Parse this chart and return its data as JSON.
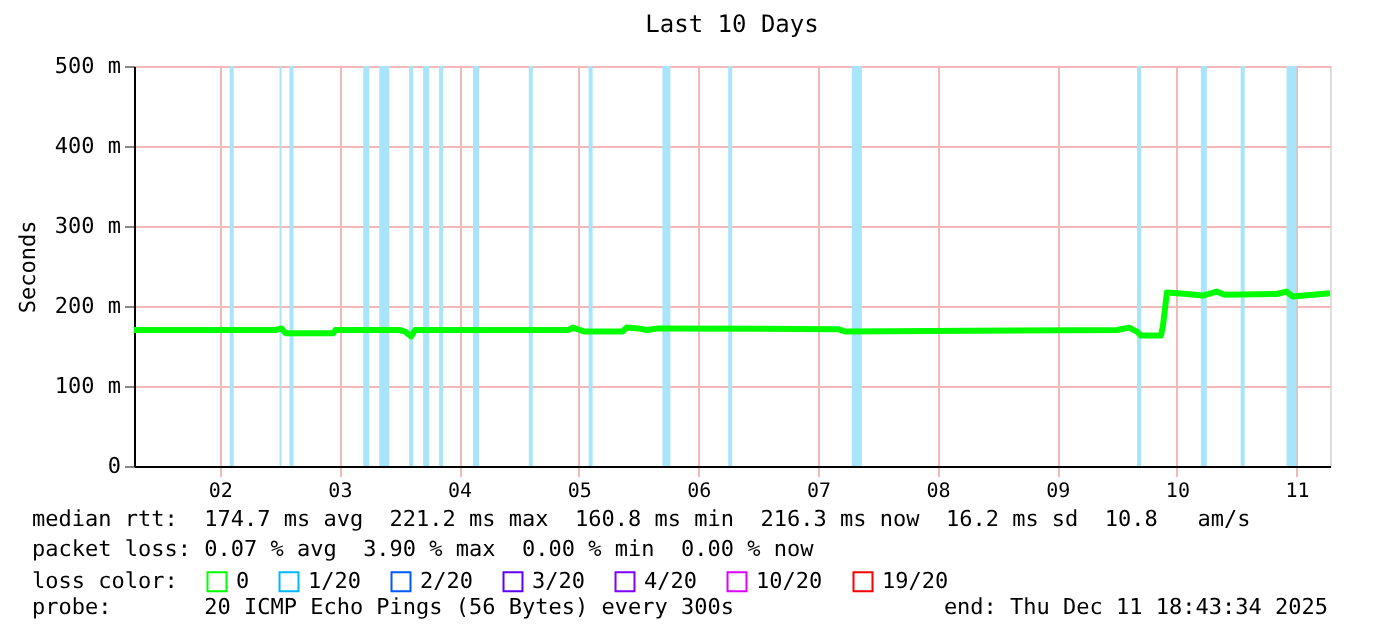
{
  "chart_data": {
    "type": "line",
    "title": "Last 10 Days",
    "ylabel": "Seconds",
    "x": [
      "2025-12-01T18:48",
      "2025-12-02T23:12",
      "2025-12-03T00:24",
      "2025-12-03T01:12",
      "2025-12-03T10:48",
      "2025-12-03T11:12",
      "2025-12-04T00:00",
      "2025-12-04T01:12",
      "2025-12-04T02:24",
      "2025-12-04T03:12",
      "2025-12-05T10:00",
      "2025-12-05T10:48",
      "2025-12-05T13:12",
      "2025-12-05T20:48",
      "2025-12-05T21:36",
      "2025-12-06T00:00",
      "2025-12-06T01:36",
      "2025-12-06T04:00",
      "2025-12-07T16:00",
      "2025-12-07T17:36",
      "2025-12-10T00:00",
      "2025-12-10T02:24",
      "2025-12-10T04:00",
      "2025-12-10T04:48",
      "2025-12-10T08:48",
      "2025-12-10T09:12",
      "2025-12-10T10:00",
      "2025-12-10T14:00",
      "2025-12-10T17:12",
      "2025-12-10T20:00",
      "2025-12-10T21:36",
      "2025-12-11T08:00",
      "2025-12-11T10:00",
      "2025-12-11T11:12",
      "2025-12-11T18:43"
    ],
    "series": [
      {
        "name": "0",
        "color": "#00ff00",
        "values": [
          170,
          170,
          172,
          166,
          166,
          170,
          170,
          168,
          162,
          170,
          170,
          173,
          168,
          168,
          173,
          172,
          170,
          172,
          171,
          168,
          170,
          173,
          168,
          163,
          163,
          175,
          217,
          215,
          213,
          218,
          214,
          215,
          218,
          212,
          216
        ]
      },
      {
        "name": "1/20",
        "color": "#00b8ff",
        "values": [
          null,
          null,
          null,
          null,
          null,
          null,
          null,
          null,
          null,
          null,
          null,
          null,
          null,
          null,
          null,
          null,
          null,
          null,
          null,
          null,
          null,
          null,
          null,
          null,
          null,
          null,
          null,
          null,
          null,
          null,
          null,
          null,
          null,
          null,
          null
        ]
      },
      {
        "name": "2/20",
        "color": "#0059ff",
        "values": [
          null,
          null,
          null,
          null,
          null,
          null,
          null,
          null,
          null,
          null,
          null,
          null,
          null,
          null,
          null,
          null,
          null,
          null,
          null,
          null,
          null,
          null,
          null,
          null,
          null,
          null,
          null,
          null,
          null,
          null,
          null,
          null,
          null,
          null,
          null
        ]
      },
      {
        "name": "3/20",
        "color": "#5e00ff",
        "values": [
          null,
          null,
          null,
          null,
          null,
          null,
          null,
          null,
          null,
          null,
          null,
          null,
          null,
          null,
          null,
          null,
          null,
          null,
          null,
          null,
          null,
          null,
          null,
          null,
          null,
          null,
          null,
          null,
          null,
          null,
          null,
          null,
          null,
          null,
          null
        ]
      },
      {
        "name": "4/20",
        "color": "#7e00ff",
        "values": [
          null,
          null,
          null,
          null,
          null,
          null,
          null,
          null,
          null,
          null,
          null,
          null,
          null,
          null,
          null,
          null,
          null,
          null,
          null,
          null,
          null,
          null,
          null,
          null,
          null,
          null,
          null,
          null,
          null,
          null,
          null,
          null,
          null,
          null,
          null
        ]
      },
      {
        "name": "10/20",
        "color": "#dd00ff",
        "values": [
          null,
          null,
          null,
          null,
          null,
          null,
          null,
          null,
          null,
          null,
          null,
          null,
          null,
          null,
          null,
          null,
          null,
          null,
          null,
          null,
          null,
          null,
          null,
          null,
          null,
          null,
          null,
          null,
          null,
          null,
          null,
          null,
          null,
          null,
          null
        ]
      },
      {
        "name": "19/20",
        "color": "#ff0000",
        "values": [
          null,
          null,
          null,
          null,
          null,
          null,
          null,
          null,
          null,
          null,
          null,
          null,
          null,
          null,
          null,
          null,
          null,
          null,
          null,
          null,
          null,
          null,
          null,
          null,
          null,
          null,
          null,
          null,
          null,
          null,
          null,
          null,
          null,
          null,
          null
        ]
      }
    ],
    "legend_title": "loss color:",
    "legend": "bottom",
    "xlim": [
      "2025-12-01T18:48",
      "2025-12-11T18:43"
    ],
    "xticks": [
      {
        "value": "2025-12-02T12:00",
        "label": "02"
      },
      {
        "value": "2025-12-03T12:00",
        "label": "03"
      },
      {
        "value": "2025-12-04T12:00",
        "label": "04"
      },
      {
        "value": "2025-12-05T12:00",
        "label": "05"
      },
      {
        "value": "2025-12-06T12:00",
        "label": "06"
      },
      {
        "value": "2025-12-07T12:00",
        "label": "07"
      },
      {
        "value": "2025-12-08T12:00",
        "label": "08"
      },
      {
        "value": "2025-12-09T12:00",
        "label": "09"
      },
      {
        "value": "2025-12-10T12:00",
        "label": "10"
      },
      {
        "value": "2025-12-11T12:00",
        "label": "11"
      }
    ],
    "ylim": [
      0,
      500
    ],
    "yticks": [
      0,
      {
        "value": 100,
        "label": "100 m"
      },
      {
        "value": 200,
        "label": "200 m"
      },
      {
        "value": 300,
        "label": "300 m"
      },
      {
        "value": 400,
        "label": "400 m"
      },
      {
        "value": 500,
        "label": "500 m"
      }
    ],
    "grid": true,
    "bands": [
      {
        "axis": "x",
        "from": "2025-12-02T14:00",
        "to": "2025-12-02T14:48",
        "color": "#a8e4fa"
      },
      {
        "axis": "x",
        "from": "2025-12-03T00:00",
        "to": "2025-12-03T00:24",
        "color": "#a8e4fa"
      },
      {
        "axis": "x",
        "from": "2025-12-03T02:00",
        "to": "2025-12-03T02:48",
        "color": "#a8e4fa"
      },
      {
        "axis": "x",
        "from": "2025-12-03T16:48",
        "to": "2025-12-03T18:00",
        "color": "#a8e4fa"
      },
      {
        "axis": "x",
        "from": "2025-12-03T20:00",
        "to": "2025-12-03T22:00",
        "color": "#a8e4fa"
      },
      {
        "axis": "x",
        "from": "2025-12-04T02:00",
        "to": "2025-12-04T02:48",
        "color": "#a8e4fa"
      },
      {
        "axis": "x",
        "from": "2025-12-04T04:48",
        "to": "2025-12-04T06:00",
        "color": "#a8e4fa"
      },
      {
        "axis": "x",
        "from": "2025-12-04T08:00",
        "to": "2025-12-04T08:48",
        "color": "#a8e4fa"
      },
      {
        "axis": "x",
        "from": "2025-12-04T14:48",
        "to": "2025-12-04T16:00",
        "color": "#a8e4fa"
      },
      {
        "axis": "x",
        "from": "2025-12-05T02:00",
        "to": "2025-12-05T02:48",
        "color": "#a8e4fa"
      },
      {
        "axis": "x",
        "from": "2025-12-05T14:00",
        "to": "2025-12-05T14:48",
        "color": "#a8e4fa"
      },
      {
        "axis": "x",
        "from": "2025-12-06T04:48",
        "to": "2025-12-06T06:24",
        "color": "#a8e4fa"
      },
      {
        "axis": "x",
        "from": "2025-12-06T18:00",
        "to": "2025-12-06T18:48",
        "color": "#a8e4fa"
      },
      {
        "axis": "x",
        "from": "2025-12-07T18:48",
        "to": "2025-12-07T20:48",
        "color": "#a8e4fa"
      },
      {
        "axis": "x",
        "from": "2025-12-10T04:00",
        "to": "2025-12-10T04:48",
        "color": "#a8e4fa"
      },
      {
        "axis": "x",
        "from": "2025-12-10T16:48",
        "to": "2025-12-10T18:00",
        "color": "#a8e4fa"
      },
      {
        "axis": "x",
        "from": "2025-12-11T00:48",
        "to": "2025-12-11T01:36",
        "color": "#a8e4fa"
      },
      {
        "axis": "x",
        "from": "2025-12-11T10:00",
        "to": "2025-12-11T12:00",
        "color": "#a8e4fa"
      }
    ],
    "annotations": [
      "median rtt:  174.7 ms avg  221.2 ms max  160.8 ms min  216.3 ms now  16.2 ms sd  10.8   am/s",
      "packet loss: 0.07 % avg  3.90 % max  0.00 % min  0.00 % now",
      "probe:       20 ICMP Echo Pings (56 Bytes) every 300s",
      "end: Thu Dec 11 18:43:34 2025"
    ]
  }
}
